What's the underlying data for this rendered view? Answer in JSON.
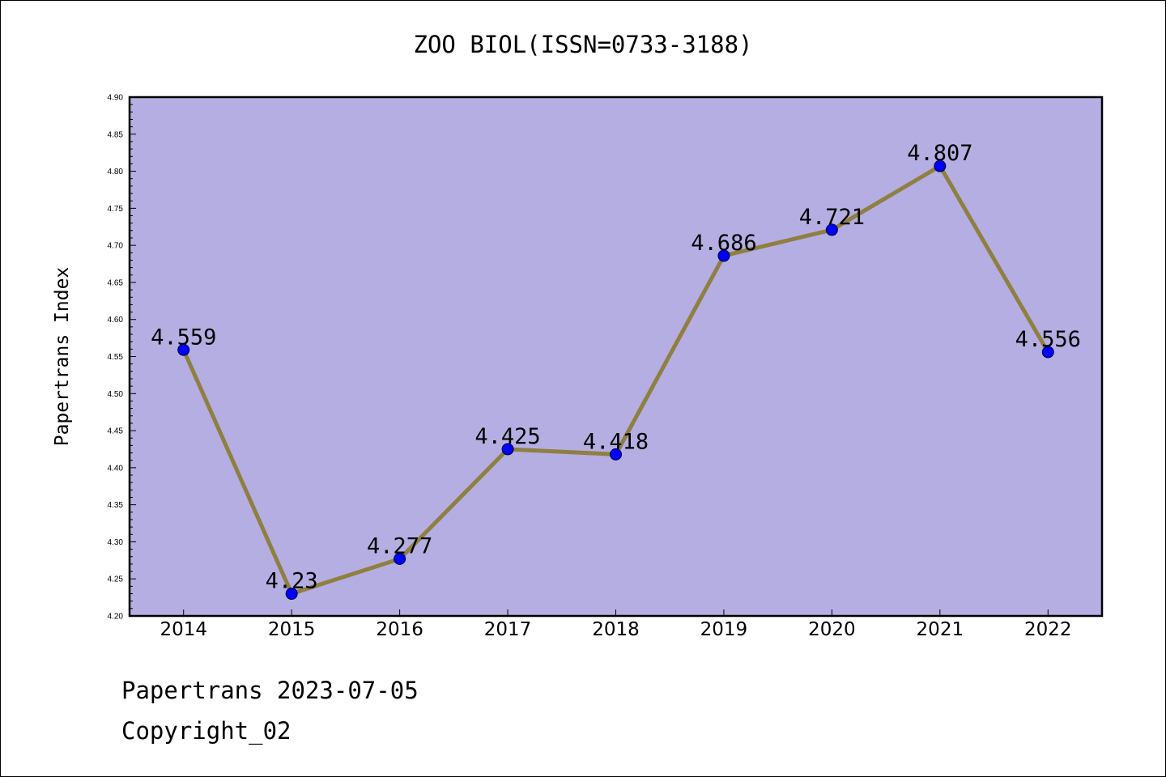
{
  "chart_data": {
    "type": "line",
    "title": "ZOO BIOL(ISSN=0733-3188)",
    "xlabel": "",
    "ylabel": "Papertrans Index",
    "categories": [
      "2014",
      "2015",
      "2016",
      "2017",
      "2018",
      "2019",
      "2020",
      "2021",
      "2022"
    ],
    "series": [
      {
        "values": [
          4.559,
          4.23,
          4.277,
          4.425,
          4.418,
          4.686,
          4.721,
          4.807,
          4.556
        ],
        "labels": [
          "4.559",
          "4.23",
          "4.277",
          "4.425",
          "4.418",
          "4.686",
          "4.721",
          "4.807",
          "4.556"
        ]
      }
    ],
    "ylim": [
      4.2,
      4.9
    ],
    "yticks": [
      "4.20",
      "4.25",
      "4.30",
      "4.35",
      "4.40",
      "4.45",
      "4.50",
      "4.55",
      "4.60",
      "4.65",
      "4.70",
      "4.75",
      "4.80",
      "4.85",
      "4.90"
    ],
    "grid": false,
    "legend": "none",
    "colors": {
      "plot_background": "#b4aee2",
      "line": "#8f7f40",
      "marker": "#0000ff"
    }
  },
  "footer": {
    "date_line": "Papertrans 2023-07-05",
    "copyright_line": "Copyright_02"
  }
}
